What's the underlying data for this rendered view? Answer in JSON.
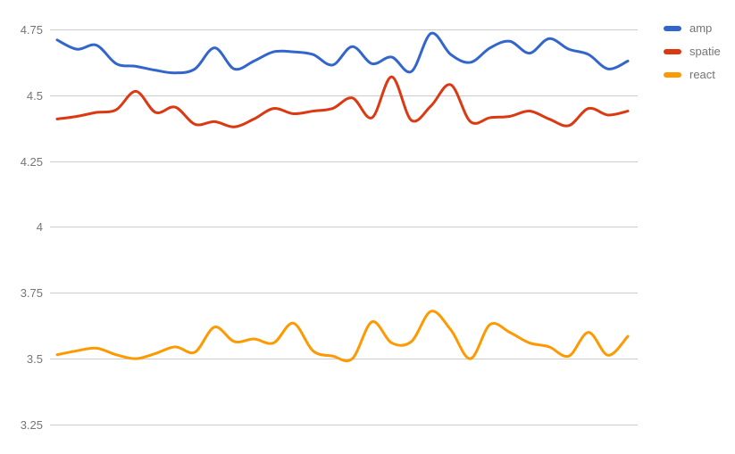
{
  "chart_data": {
    "type": "line",
    "curve": "smooth",
    "title": "",
    "grid": true,
    "legend_position": "right",
    "background_color": "#ffffff",
    "gridline_color": "#cccccc",
    "axis_label_color": "#757575",
    "y_axis": {
      "tick_labels": [
        "4.75",
        "4.5",
        "4.25",
        "4",
        "3.75",
        "3.5",
        "3.25"
      ],
      "tick_values": [
        4.75,
        4.5,
        4.25,
        4.0,
        3.75,
        3.5,
        3.25
      ],
      "ylim": [
        3.25,
        4.75
      ]
    },
    "x_axis": {
      "tick_labels": [],
      "note_points_evenly_spaced": true
    },
    "series": [
      {
        "name": "amp",
        "color": "#3366CC",
        "values": [
          4.71,
          4.675,
          4.69,
          4.62,
          4.61,
          4.595,
          4.585,
          4.6,
          4.68,
          4.6,
          4.63,
          4.665,
          4.665,
          4.655,
          4.615,
          4.685,
          4.62,
          4.645,
          4.59,
          4.735,
          4.655,
          4.625,
          4.68,
          4.705,
          4.66,
          4.715,
          4.675,
          4.655,
          4.6,
          4.63
        ]
      },
      {
        "name": "spatie",
        "color": "#DC3912",
        "values": [
          4.41,
          4.42,
          4.435,
          4.445,
          4.515,
          4.435,
          4.455,
          4.39,
          4.4,
          4.38,
          4.41,
          4.45,
          4.43,
          4.44,
          4.45,
          4.49,
          4.415,
          4.57,
          4.405,
          4.46,
          4.54,
          4.4,
          4.415,
          4.42,
          4.44,
          4.41,
          4.385,
          4.45,
          4.425,
          4.44
        ]
      },
      {
        "name": "react",
        "color": "#FF9900",
        "values": [
          3.515,
          3.53,
          3.54,
          3.515,
          3.5,
          3.52,
          3.545,
          3.525,
          3.62,
          3.565,
          3.575,
          3.56,
          3.635,
          3.53,
          3.51,
          3.5,
          3.64,
          3.56,
          3.565,
          3.68,
          3.61,
          3.5,
          3.63,
          3.6,
          3.56,
          3.545,
          3.51,
          3.6,
          3.513,
          3.585
        ]
      }
    ]
  }
}
